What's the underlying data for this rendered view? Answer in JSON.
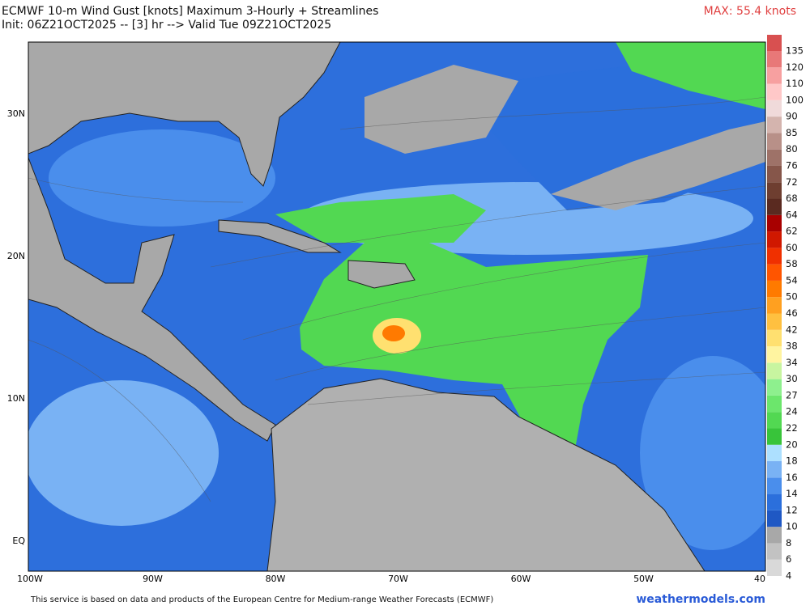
{
  "header": {
    "title": "ECMWF 10-m Wind Gust [knots] Maximum 3-Hourly + Streamlines",
    "subtitle": "Init: 06Z21OCT2025 -- [3] hr --> Valid Tue 09Z21OCT2025",
    "max_label": "MAX: 55.4 knots"
  },
  "map": {
    "lon_labels": [
      "100W",
      "90W",
      "80W",
      "70W",
      "60W",
      "50W",
      "40"
    ],
    "lat_labels": [
      "30N",
      "20N",
      "10N",
      "EQ"
    ]
  },
  "colorbar": {
    "levels": [
      {
        "value": 4,
        "color": "#d9d9d9"
      },
      {
        "value": 6,
        "color": "#c2c2c2"
      },
      {
        "value": 8,
        "color": "#a8a8a8"
      },
      {
        "value": 10,
        "color": "#1f58c4"
      },
      {
        "value": 12,
        "color": "#2b6fdc"
      },
      {
        "value": 14,
        "color": "#4a8eec"
      },
      {
        "value": 16,
        "color": "#79b2f4"
      },
      {
        "value": 18,
        "color": "#ade0ff"
      },
      {
        "value": 20,
        "color": "#38c43a"
      },
      {
        "value": 22,
        "color": "#52d852"
      },
      {
        "value": 24,
        "color": "#6ce66c"
      },
      {
        "value": 27,
        "color": "#8ef08e"
      },
      {
        "value": 30,
        "color": "#c8f5a0"
      },
      {
        "value": 34,
        "color": "#fff4a0"
      },
      {
        "value": 38,
        "color": "#ffe070"
      },
      {
        "value": 42,
        "color": "#ffc040"
      },
      {
        "value": 46,
        "color": "#ffa020"
      },
      {
        "value": 50,
        "color": "#ff7a00"
      },
      {
        "value": 54,
        "color": "#ff5500"
      },
      {
        "value": 58,
        "color": "#f03000"
      },
      {
        "value": 60,
        "color": "#d01800"
      },
      {
        "value": 62,
        "color": "#a80000"
      },
      {
        "value": 64,
        "color": "#5a2a20"
      },
      {
        "value": 68,
        "color": "#6e3e30"
      },
      {
        "value": 72,
        "color": "#86564a"
      },
      {
        "value": 76,
        "color": "#9e7268"
      },
      {
        "value": 80,
        "color": "#b89088"
      },
      {
        "value": 85,
        "color": "#d4b4ae"
      },
      {
        "value": 90,
        "color": "#f0dada"
      },
      {
        "value": 100,
        "color": "#ffc8c8"
      },
      {
        "value": 110,
        "color": "#f7a0a0"
      },
      {
        "value": 120,
        "color": "#e87878"
      },
      {
        "value": 135,
        "color": "#d85050"
      }
    ]
  },
  "footer": {
    "credit": "This service is based on data and products of the European Centre for Medium-range Weather Forecasts (ECMWF)",
    "site": "weathermodels.com"
  }
}
